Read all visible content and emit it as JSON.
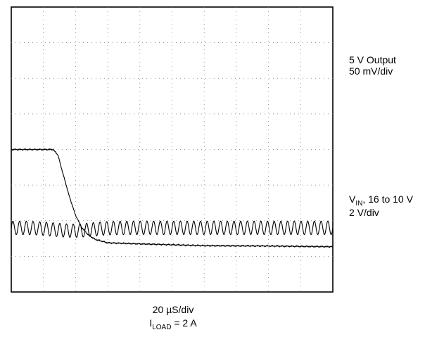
{
  "chart_data": {
    "type": "line",
    "title": "",
    "xlabel": "20 µS/div",
    "x_divisions": 10,
    "y_divisions": 8,
    "grid": true,
    "condition": {
      "symbol": "I",
      "subscript": "LOAD",
      "value": "= 2 A"
    },
    "traces": [
      {
        "label_line1": "5 V Output",
        "label_line2": "50 mV/div",
        "scale": "50 mV/div",
        "center_div": 1.8,
        "ripple_cycles": 48,
        "ripple_amplitude_div": 0.19,
        "color": "#000000"
      },
      {
        "label_symbol": "V",
        "label_subscript": "IN",
        "label_rest": ", 16 to 10 V",
        "label_line2": "2 V/div",
        "scale": "2 V/div",
        "x_div": [
          0,
          1.3,
          1.45,
          1.6,
          1.8,
          2.0,
          2.2,
          2.4,
          2.6,
          3.0,
          4.0,
          6.0,
          8.0,
          10.0
        ],
        "y_div": [
          4.0,
          4.0,
          3.85,
          3.35,
          2.7,
          2.15,
          1.8,
          1.6,
          1.48,
          1.38,
          1.35,
          1.3,
          1.29,
          1.27
        ],
        "start_V": 16,
        "end_V": 10,
        "color": "#000000"
      }
    ]
  }
}
